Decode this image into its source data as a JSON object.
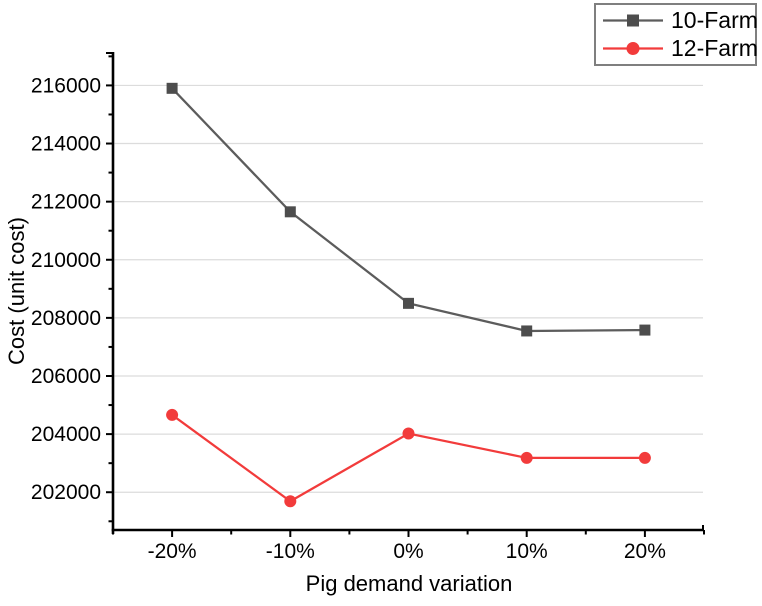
{
  "chart_data": {
    "type": "line",
    "title": "",
    "xlabel": "Pig demand variation",
    "ylabel": "Cost (unit cost)",
    "categories": [
      "-20%",
      "-10%",
      "0%",
      "10%",
      "20%"
    ],
    "series": [
      {
        "name": "10-Farm",
        "marker": "square",
        "line_color": "#5c5c5c",
        "marker_color": "#4d4d4d",
        "values": [
          215900,
          211650,
          208500,
          207550,
          207580
        ]
      },
      {
        "name": "12-Farm",
        "marker": "circle",
        "line_color": "#f23b3b",
        "marker_color": "#f23b3b",
        "values": [
          204660,
          201690,
          204020,
          203180,
          203180
        ]
      }
    ],
    "y_ticks": [
      202000,
      204000,
      206000,
      208000,
      210000,
      212000,
      214000,
      216000
    ],
    "ylim": [
      200700,
      217150
    ],
    "minor_tick_step": 1000,
    "grid": "horizontal-major",
    "grid_color": "#dcdcdc",
    "axis_color": "#000000",
    "legend_position": "top-right",
    "legend_border_color": "#7f7f7f"
  }
}
